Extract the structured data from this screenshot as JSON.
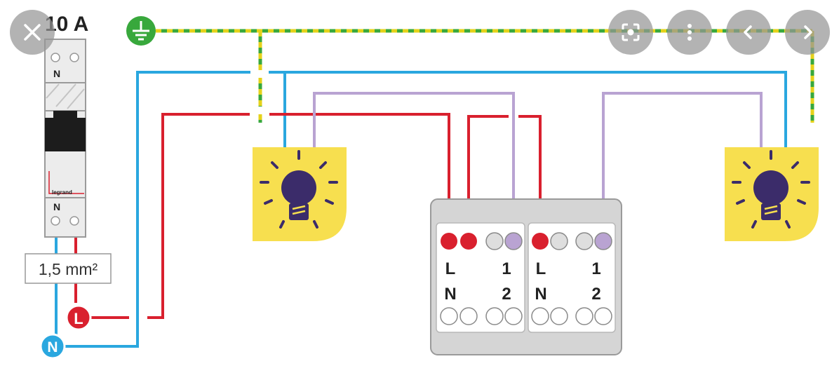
{
  "colors": {
    "live": "#d9202e",
    "neutral": "#2aa7df",
    "earth_green": "#38a83c",
    "earth_yellow": "#e5d21a",
    "switched": "#b9a3d2",
    "lamp_fill": "#f7df4f",
    "bulb": "#3b2c6a",
    "box": "#d5d5d5",
    "overlay": "#969696"
  },
  "breaker": {
    "rating": "10 A",
    "top_label": "N",
    "bottom_label": "N",
    "brand": "legrand"
  },
  "cable": {
    "label": "1,5 mm²"
  },
  "terminals": {
    "live": "L",
    "neutral": "N",
    "earth": "earth-icon"
  },
  "switch_box": {
    "modules": [
      {
        "top_left": "L",
        "top_right": "1",
        "bottom_left": "N",
        "bottom_right": "2"
      },
      {
        "top_left": "L",
        "top_right": "1",
        "bottom_left": "N",
        "bottom_right": "2"
      }
    ]
  },
  "lamps": [
    {
      "icon": "light-bulb-icon"
    },
    {
      "icon": "light-bulb-icon"
    }
  ],
  "overlay_controls": [
    {
      "icon": "close-icon"
    },
    {
      "icon": "lens-icon"
    },
    {
      "icon": "more-vertical-icon"
    },
    {
      "icon": "chevron-left-icon"
    },
    {
      "icon": "chevron-right-icon"
    }
  ]
}
